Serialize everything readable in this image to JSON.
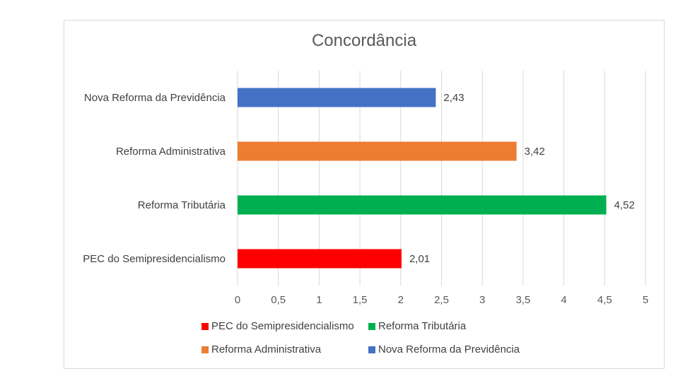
{
  "chart_data": {
    "type": "bar",
    "orientation": "horizontal",
    "title": "Concordância",
    "categories": [
      "PEC do Semipresidencialismo",
      "Reforma Tributária",
      "Reforma Administrativa",
      "Nova Reforma da Previdência"
    ],
    "values": [
      2.01,
      4.52,
      3.42,
      2.43
    ],
    "value_labels": [
      "2,01",
      "4,52",
      "3,42",
      "2,43"
    ],
    "colors": [
      "#ff0000",
      "#00b050",
      "#ed7d31",
      "#4472c4"
    ],
    "xlim": [
      0,
      5
    ],
    "xticks": [
      "0",
      "0,5",
      "1",
      "1,5",
      "2",
      "2,5",
      "3",
      "3,5",
      "4",
      "4,5",
      "5"
    ],
    "grid": "vertical",
    "legend_position": "bottom",
    "legend": [
      "PEC do Semipresidencialismo",
      "Reforma Tributária",
      "Reforma Administrativa",
      "Nova Reforma da Previdência"
    ]
  }
}
